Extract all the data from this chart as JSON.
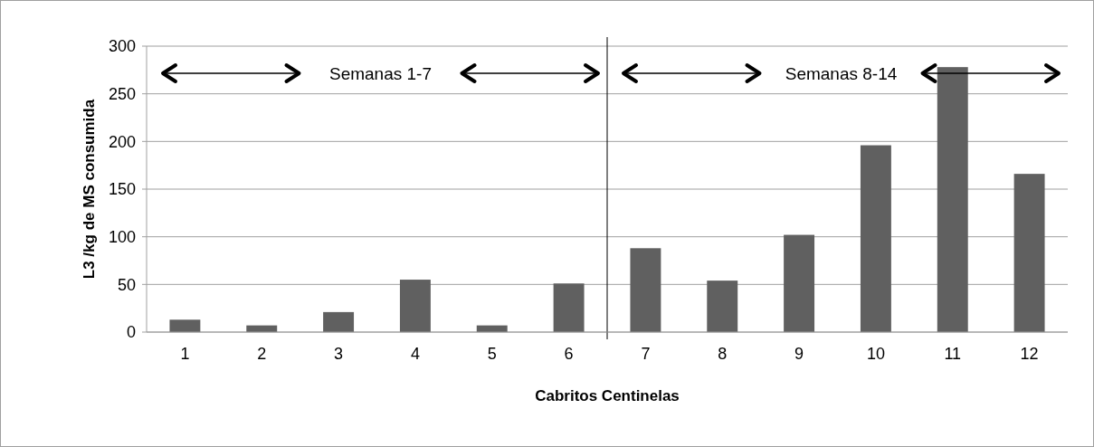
{
  "chart_data": {
    "type": "bar",
    "xlabel": "Cabritos Centinelas",
    "ylabel": "L3 /kg de MS consumida",
    "x": [
      1,
      2,
      3,
      4,
      5,
      6,
      7,
      8,
      9,
      10,
      11,
      12
    ],
    "values": [
      13,
      7,
      21,
      55,
      7,
      51,
      88,
      54,
      102,
      196,
      278,
      166
    ],
    "color": "#606060",
    "xlim": [
      0.5,
      12.5
    ],
    "xticks": [
      1,
      2,
      3,
      4,
      5,
      6,
      7,
      8,
      9,
      10,
      11,
      12
    ],
    "ylim": [
      0,
      300
    ],
    "yticks": [
      0,
      50,
      100,
      150,
      200,
      250,
      300
    ],
    "grid": "y",
    "ref_lines": [
      {
        "axis": "x",
        "value": 6.5,
        "color": "#000000"
      }
    ],
    "annotations": [
      "Semanas 1-7",
      "Semanas 8-14"
    ]
  }
}
